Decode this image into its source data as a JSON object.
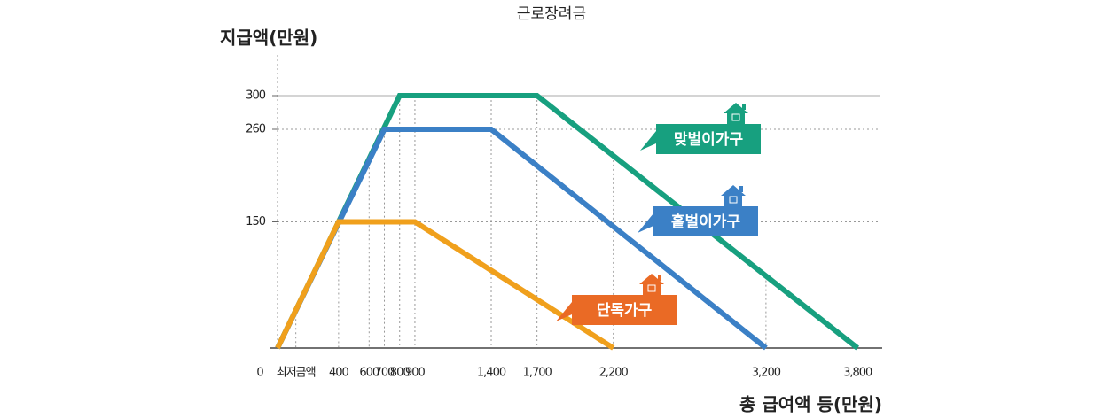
{
  "chart_data": {
    "type": "line",
    "title": "근로장려금",
    "y_label": "지급액(만원)",
    "x_label": "총 급여액 등(만원)",
    "xlim": [
      0,
      3950
    ],
    "ylim": [
      0,
      330
    ],
    "xticks": [
      0,
      {
        "value": 120,
        "label": "최저금액"
      },
      400,
      600,
      700,
      800,
      900,
      {
        "value": 1400,
        "label": "1,400"
      },
      {
        "value": 1700,
        "label": "1,700"
      },
      {
        "value": 2200,
        "label": "2,200"
      },
      {
        "value": 3200,
        "label": "3,200"
      },
      {
        "value": 3800,
        "label": "3,800"
      }
    ],
    "yticks": [
      150,
      260,
      300
    ],
    "series": [
      {
        "name": "맞벌이가구",
        "color": "#17a07f",
        "tag_color": "#17a07f",
        "x": [
          0,
          800,
          1700,
          3800
        ],
        "values": [
          0,
          300,
          300,
          0
        ]
      },
      {
        "name": "홑벌이가구",
        "color": "#3b80c6",
        "tag_color": "#3b80c6",
        "x": [
          0,
          700,
          1400,
          3200
        ],
        "values": [
          0,
          260,
          260,
          0
        ]
      },
      {
        "name": "단독가구",
        "color": "#f0a01c",
        "tag_color": "#ea6a25",
        "x": [
          0,
          400,
          900,
          2200
        ],
        "values": [
          0,
          150,
          150,
          0
        ]
      }
    ]
  }
}
